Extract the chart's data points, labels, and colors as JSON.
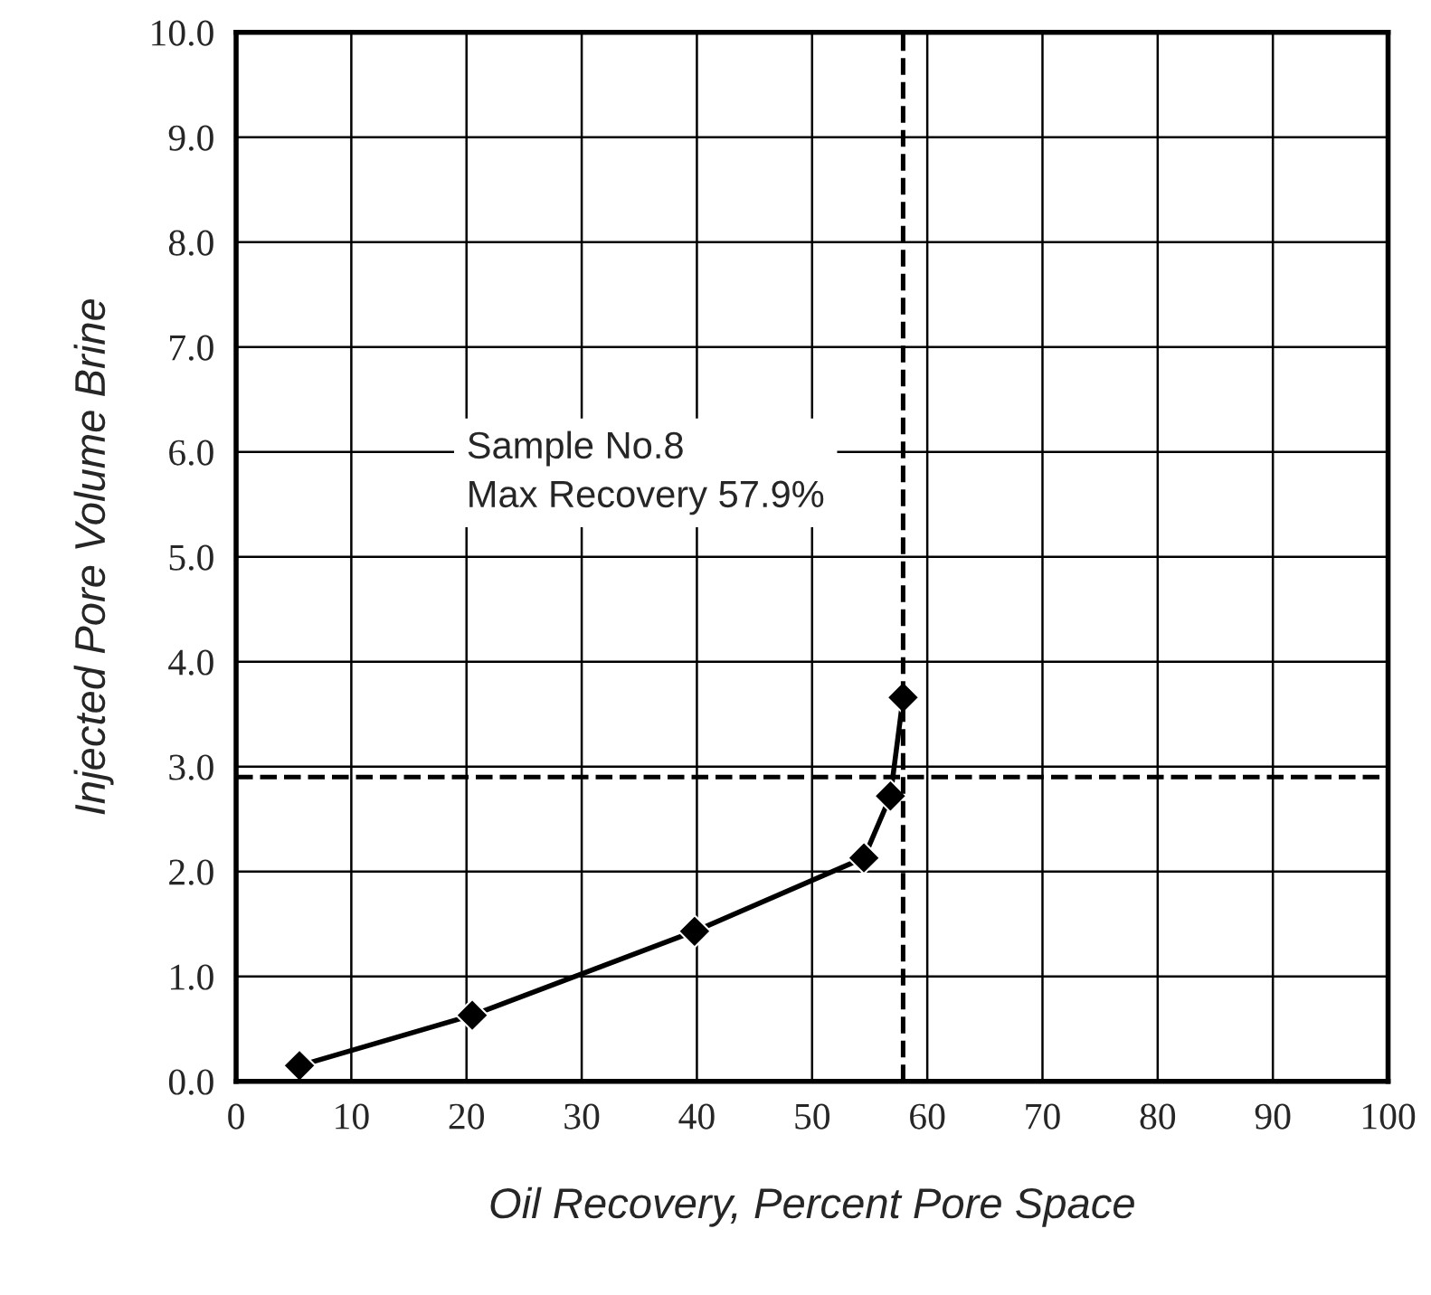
{
  "chart_data": {
    "type": "line",
    "xlabel": "Oil Recovery, Percent Pore Space",
    "ylabel": "Injected Pore Volume Brine",
    "x": [
      5.5,
      20.5,
      39.8,
      54.5,
      56.8,
      57.9
    ],
    "series": [
      {
        "color": "#000000",
        "values": [
          0.15,
          0.63,
          1.43,
          2.13,
          2.72,
          3.66
        ]
      }
    ],
    "marker": "diamond",
    "line_style": "solid",
    "xlim": [
      0,
      100
    ],
    "xticks": [
      0,
      10,
      20,
      30,
      40,
      50,
      60,
      70,
      80,
      90,
      100
    ],
    "ylim": [
      0,
      10
    ],
    "yticks": [
      {
        "value": 0,
        "label": "0.0"
      },
      {
        "value": 1,
        "label": "1.0"
      },
      {
        "value": 2,
        "label": "2.0"
      },
      {
        "value": 3,
        "label": "3.0"
      },
      {
        "value": 4,
        "label": "4.0"
      },
      {
        "value": 5,
        "label": "5.0"
      },
      {
        "value": 6,
        "label": "6.0"
      },
      {
        "value": 7,
        "label": "7.0"
      },
      {
        "value": 8,
        "label": "8.0"
      },
      {
        "value": 9,
        "label": "9.0"
      },
      {
        "value": 10,
        "label": "10.0"
      }
    ],
    "grid": true,
    "ref_lines": [
      {
        "axis": "x",
        "value": 57.9,
        "color": "#000000",
        "line_style": "dashed"
      },
      {
        "axis": "y",
        "value": 2.9,
        "color": "#000000",
        "line_style": "dashed"
      }
    ],
    "annotations": [
      "Sample No.8\nMax Recovery 57.9%"
    ]
  }
}
